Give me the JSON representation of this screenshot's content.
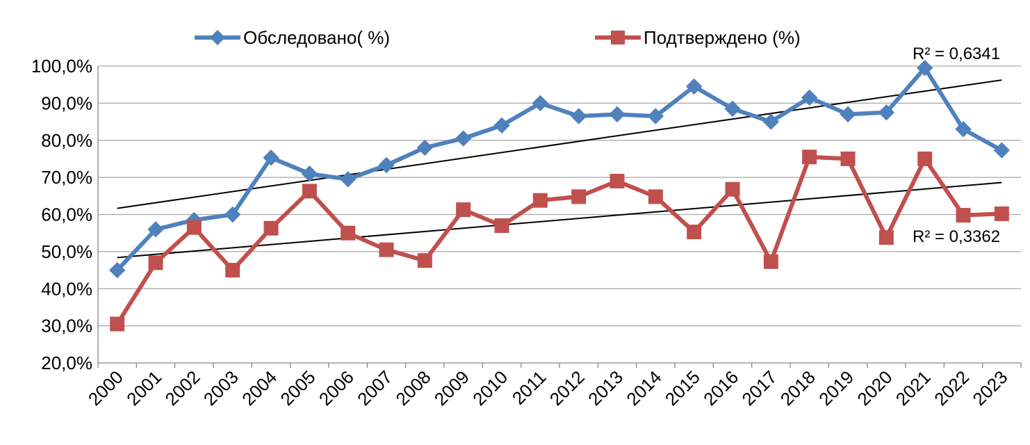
{
  "chart_data": {
    "type": "line",
    "categories": [
      "2000",
      "2001",
      "2002",
      "2003",
      "2004",
      "2005",
      "2006",
      "2007",
      "2008",
      "2009",
      "2010",
      "2011",
      "2012",
      "2013",
      "2014",
      "2015",
      "2016",
      "2017",
      "2018",
      "2019",
      "2020",
      "2021",
      "2022",
      "2023"
    ],
    "series": [
      {
        "name": "Обследовано( %)",
        "color": "#4f81bd",
        "marker": "diamond",
        "values": [
          45.0,
          56.0,
          58.5,
          60.0,
          75.3,
          71.0,
          69.5,
          73.3,
          78.0,
          80.5,
          84.0,
          90.0,
          86.5,
          87.0,
          86.5,
          94.5,
          88.5,
          85.0,
          91.5,
          87.0,
          87.5,
          99.5,
          83.0,
          77.3
        ],
        "trendline": {
          "color": "#000000",
          "r2_label": "R² = 0,6341"
        }
      },
      {
        "name": "Подтверждено (%)",
        "color": "#c0504d",
        "marker": "square",
        "values": [
          30.5,
          47.0,
          56.5,
          45.0,
          56.3,
          66.3,
          55.0,
          50.5,
          47.6,
          61.3,
          57.0,
          63.8,
          64.8,
          69.0,
          64.8,
          55.3,
          66.8,
          47.3,
          75.5,
          75.0,
          53.8,
          75.0,
          59.8,
          60.2
        ],
        "trendline": {
          "color": "#000000",
          "r2_label": "R² = 0,3362"
        }
      }
    ],
    "y_ticks": [
      "20,0%",
      "30,0%",
      "40,0%",
      "50,0%",
      "60,0%",
      "70,0%",
      "80,0%",
      "90,0%",
      "100,0%"
    ],
    "ylim": [
      20,
      100
    ],
    "grid": true,
    "legend": "top",
    "title": "",
    "xlabel": "",
    "ylabel": ""
  }
}
